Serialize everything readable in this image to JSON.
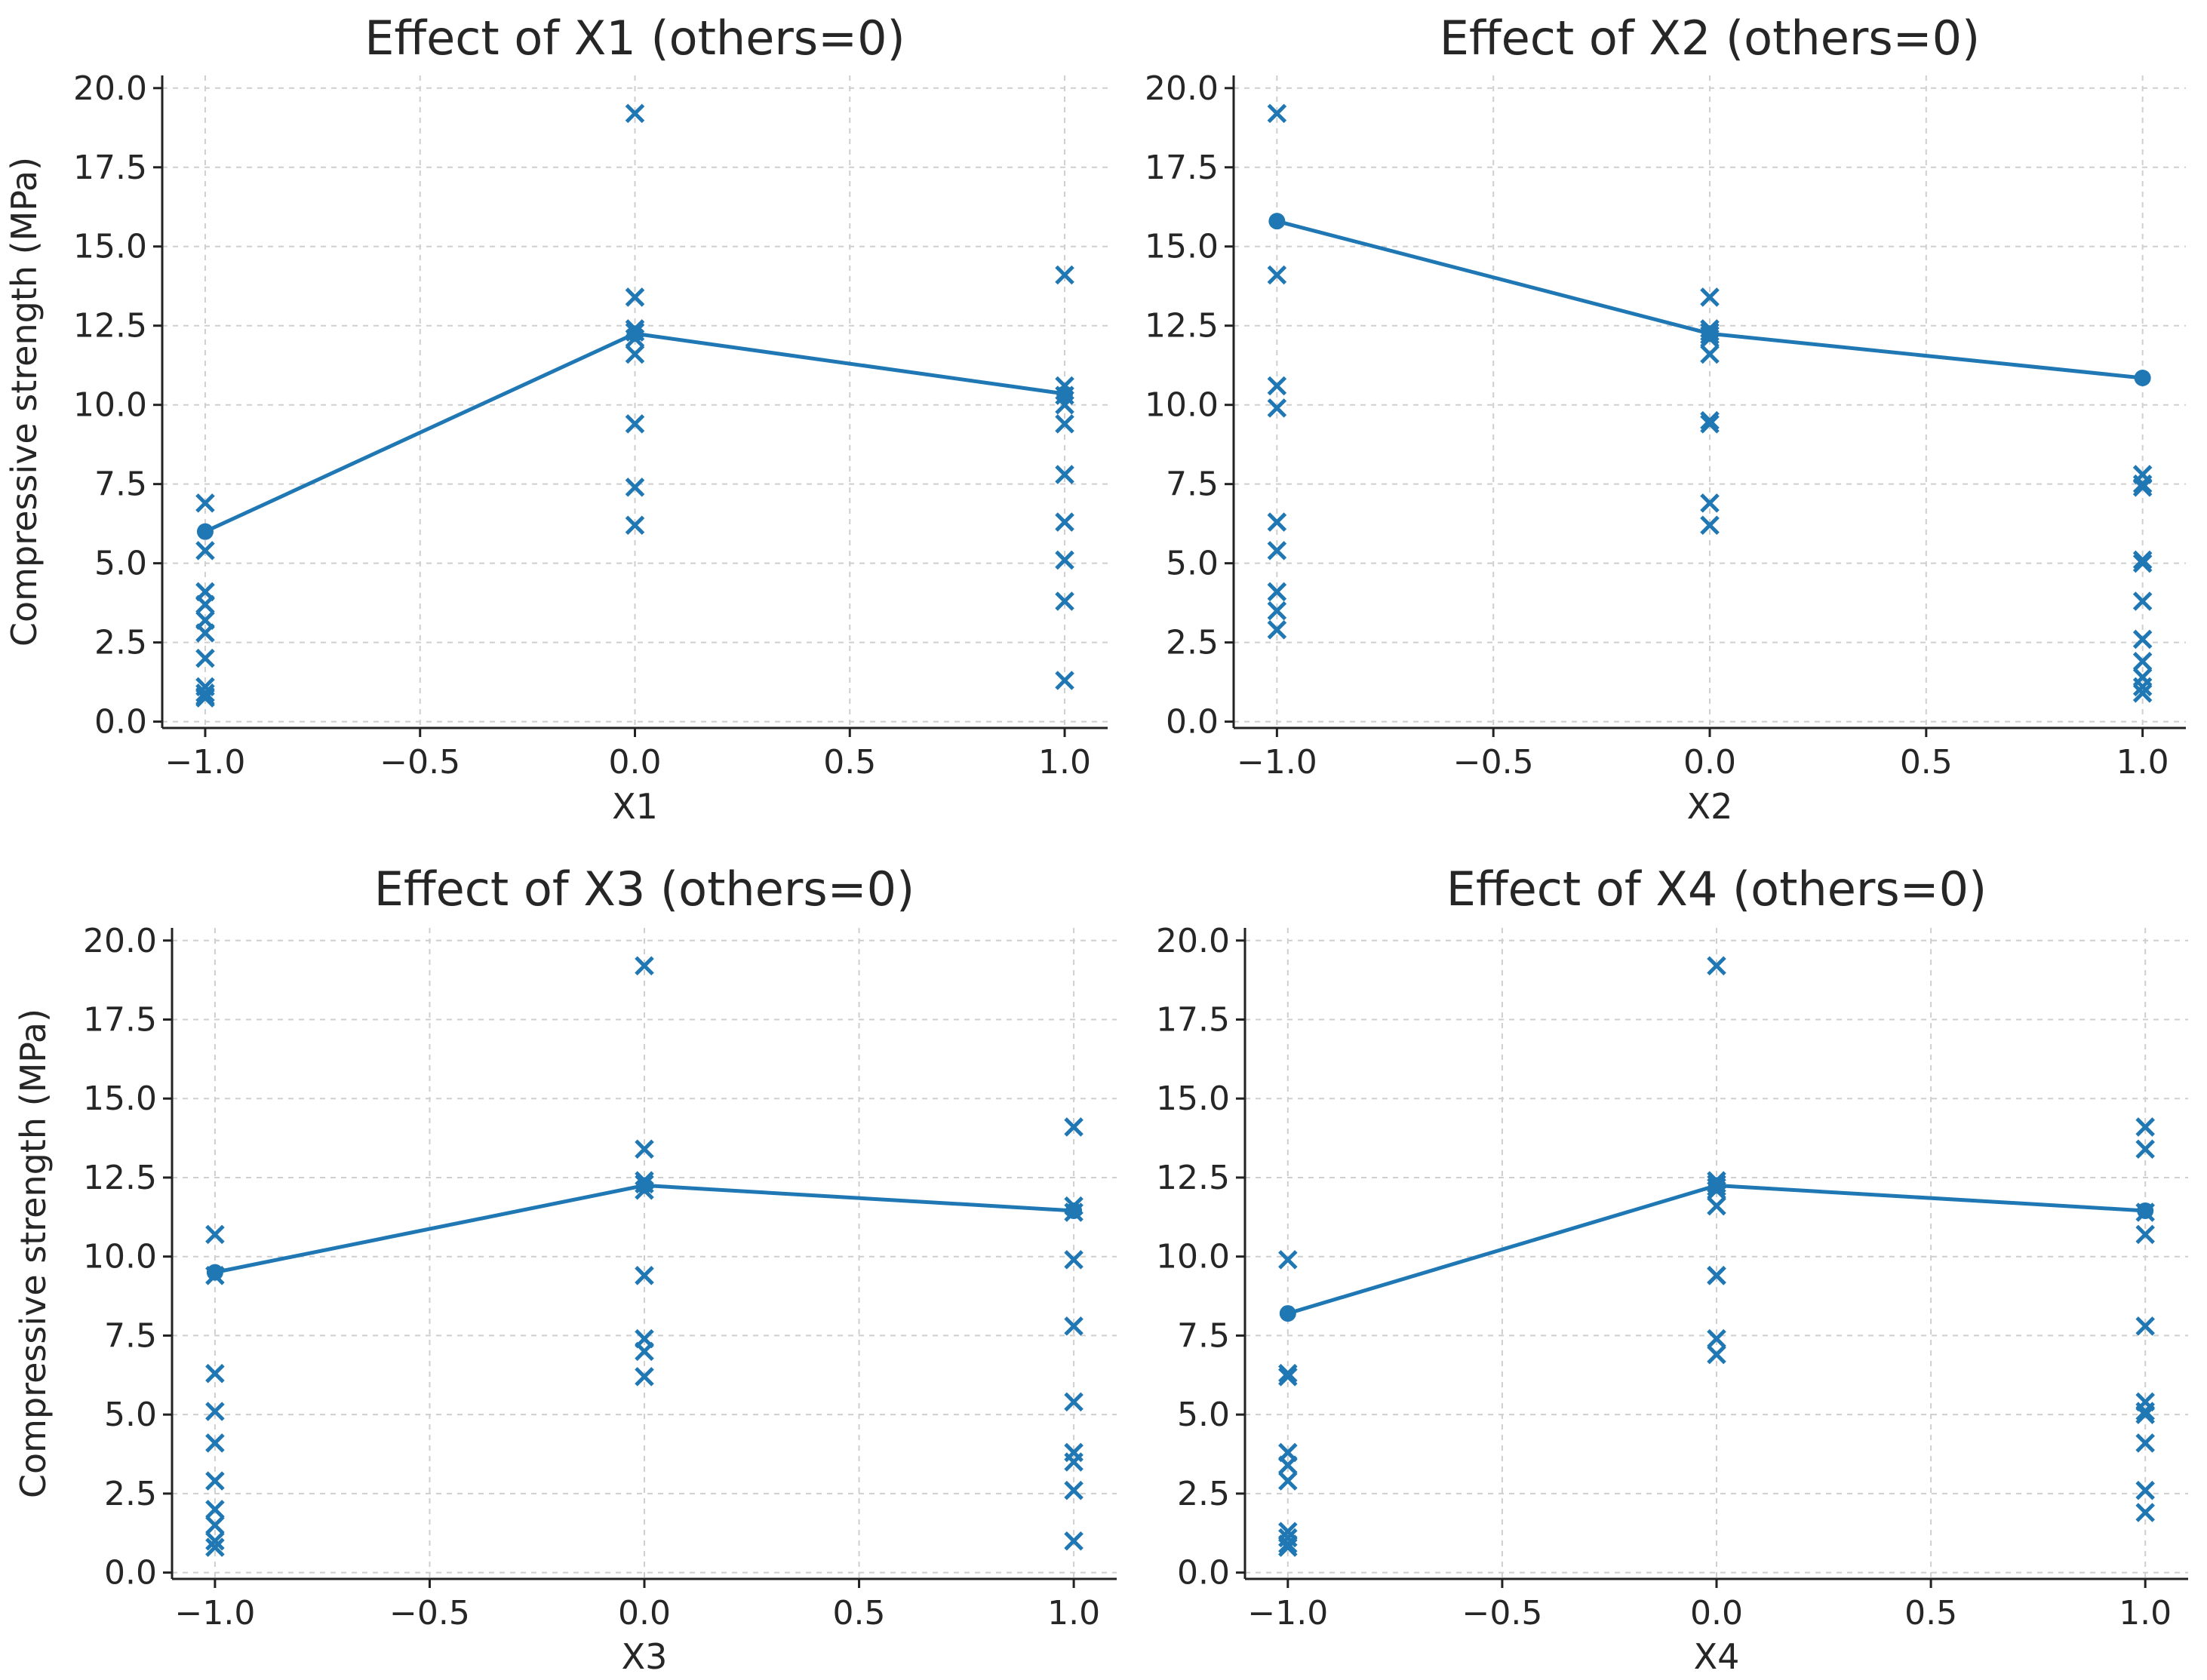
{
  "colors": {
    "series": "#1f77b4",
    "text": "#262626",
    "grid": "#cfcfcf",
    "axis": "#222222"
  },
  "chart_data": [
    {
      "type": "line",
      "title": "Effect of X1 (others=0)",
      "xlabel": "X1",
      "ylabel": "Compressive strength (MPa)",
      "xlim": [
        -1.1,
        1.1
      ],
      "ylim": [
        -0.2,
        20.4
      ],
      "xticks": [
        "−1.0",
        "−0.5",
        "0.0",
        "0.5",
        "1.0"
      ],
      "xtick_values": [
        -1.0,
        -0.5,
        0.0,
        0.5,
        1.0
      ],
      "yticks": [
        "0.0",
        "2.5",
        "5.0",
        "7.5",
        "10.0",
        "12.5",
        "15.0",
        "17.5",
        "20.0"
      ],
      "ytick_values": [
        0,
        2.5,
        5,
        7.5,
        10,
        12.5,
        15,
        17.5,
        20
      ],
      "grid": true,
      "series": [
        {
          "name": "mean",
          "kind": "line-marker",
          "x": [
            -1,
            0,
            1
          ],
          "y": [
            6.0,
            12.25,
            10.35
          ]
        },
        {
          "name": "observations",
          "kind": "scatter-x",
          "x": [
            -1,
            -1,
            -1,
            -1,
            -1,
            -1,
            -1,
            -1,
            -1,
            -1,
            -1,
            0,
            0,
            0,
            0,
            0,
            0,
            0,
            0,
            0,
            1,
            1,
            1,
            1,
            1,
            1,
            1,
            1,
            1,
            1
          ],
          "y": [
            6.9,
            5.4,
            4.1,
            3.7,
            3.2,
            2.8,
            2.0,
            1.1,
            0.9,
            0.8,
            0.75,
            19.2,
            13.4,
            12.4,
            12.3,
            12.1,
            11.6,
            9.4,
            7.4,
            6.2,
            14.1,
            10.6,
            10.0,
            9.4,
            7.8,
            6.3,
            5.1,
            3.8,
            1.3,
            10.3
          ]
        }
      ]
    },
    {
      "type": "line",
      "title": "Effect of X2 (others=0)",
      "xlabel": "X2",
      "ylabel": "",
      "xlim": [
        -1.1,
        1.1
      ],
      "ylim": [
        -0.2,
        20.4
      ],
      "xticks": [
        "−1.0",
        "−0.5",
        "0.0",
        "0.5",
        "1.0"
      ],
      "xtick_values": [
        -1.0,
        -0.5,
        0.0,
        0.5,
        1.0
      ],
      "yticks": [
        "0.0",
        "2.5",
        "5.0",
        "7.5",
        "10.0",
        "12.5",
        "15.0",
        "17.5",
        "20.0"
      ],
      "ytick_values": [
        0,
        2.5,
        5,
        7.5,
        10,
        12.5,
        15,
        17.5,
        20
      ],
      "grid": true,
      "series": [
        {
          "name": "mean",
          "kind": "line-marker",
          "x": [
            -1,
            0,
            1
          ],
          "y": [
            15.8,
            12.25,
            10.85
          ]
        },
        {
          "name": "observations",
          "kind": "scatter-x",
          "x": [
            -1,
            -1,
            -1,
            -1,
            -1,
            -1,
            -1,
            -1,
            -1,
            0,
            0,
            0,
            0,
            0,
            0,
            0,
            0,
            0,
            0,
            1,
            1,
            1,
            1,
            1,
            1,
            1,
            1,
            1,
            1,
            1
          ],
          "y": [
            19.2,
            14.1,
            10.6,
            9.9,
            6.3,
            5.4,
            4.1,
            3.5,
            2.9,
            13.4,
            12.4,
            12.3,
            12.1,
            11.6,
            9.5,
            9.4,
            6.9,
            6.2,
            12.2,
            7.8,
            7.4,
            5.1,
            3.8,
            2.6,
            1.9,
            1.4,
            1.1,
            0.9,
            7.5,
            5.0
          ]
        }
      ]
    },
    {
      "type": "line",
      "title": "Effect of X3 (others=0)",
      "xlabel": "X3",
      "ylabel": "Compressive strength (MPa)",
      "xlim": [
        -1.1,
        1.1
      ],
      "ylim": [
        -0.2,
        20.4
      ],
      "xticks": [
        "−1.0",
        "−0.5",
        "0.0",
        "0.5",
        "1.0"
      ],
      "xtick_values": [
        -1.0,
        -0.5,
        0.0,
        0.5,
        1.0
      ],
      "yticks": [
        "0.0",
        "2.5",
        "5.0",
        "7.5",
        "10.0",
        "12.5",
        "15.0",
        "17.5",
        "20.0"
      ],
      "ytick_values": [
        0,
        2.5,
        5,
        7.5,
        10,
        12.5,
        15,
        17.5,
        20
      ],
      "grid": true,
      "series": [
        {
          "name": "mean",
          "kind": "line-marker",
          "x": [
            -1,
            0,
            1
          ],
          "y": [
            9.5,
            12.25,
            11.45
          ]
        },
        {
          "name": "observations",
          "kind": "scatter-x",
          "x": [
            -1,
            -1,
            -1,
            -1,
            -1,
            -1,
            -1,
            -1,
            -1,
            -1,
            0,
            0,
            0,
            0,
            0,
            0,
            0,
            0,
            0,
            1,
            1,
            1,
            1,
            1,
            1,
            1,
            1,
            1,
            1
          ],
          "y": [
            10.7,
            9.4,
            6.3,
            5.1,
            4.1,
            2.9,
            2.0,
            1.5,
            1.0,
            0.8,
            19.2,
            13.4,
            12.4,
            12.3,
            12.1,
            9.4,
            7.4,
            7.0,
            6.2,
            14.1,
            11.6,
            9.9,
            7.8,
            5.4,
            3.8,
            3.5,
            2.6,
            1.0,
            11.4
          ]
        }
      ]
    },
    {
      "type": "line",
      "title": "Effect of X4 (others=0)",
      "xlabel": "X4",
      "ylabel": "",
      "xlim": [
        -1.1,
        1.1
      ],
      "ylim": [
        -0.2,
        20.4
      ],
      "xticks": [
        "−1.0",
        "−0.5",
        "0.0",
        "0.5",
        "1.0"
      ],
      "xtick_values": [
        -1.0,
        -0.5,
        0.0,
        0.5,
        1.0
      ],
      "yticks": [
        "0.0",
        "2.5",
        "5.0",
        "7.5",
        "10.0",
        "12.5",
        "15.0",
        "17.5",
        "20.0"
      ],
      "ytick_values": [
        0,
        2.5,
        5,
        7.5,
        10,
        12.5,
        15,
        17.5,
        20
      ],
      "grid": true,
      "series": [
        {
          "name": "mean",
          "kind": "line-marker",
          "x": [
            -1,
            0,
            1
          ],
          "y": [
            8.2,
            12.25,
            11.45
          ]
        },
        {
          "name": "observations",
          "kind": "scatter-x",
          "x": [
            -1,
            -1,
            -1,
            -1,
            -1,
            -1,
            -1,
            -1,
            -1,
            -1,
            0,
            0,
            0,
            0,
            0,
            0,
            0,
            0,
            0,
            0,
            1,
            1,
            1,
            1,
            1,
            1,
            1,
            1,
            1,
            1,
            1
          ],
          "y": [
            9.9,
            6.3,
            6.2,
            3.8,
            3.4,
            2.9,
            1.3,
            1.1,
            0.9,
            0.8,
            19.2,
            12.4,
            12.3,
            12.1,
            11.6,
            9.4,
            9.4,
            7.4,
            6.9,
            12.2,
            14.1,
            13.4,
            10.7,
            7.8,
            5.4,
            5.1,
            4.1,
            2.6,
            1.9,
            11.4,
            5.0
          ]
        }
      ]
    }
  ]
}
